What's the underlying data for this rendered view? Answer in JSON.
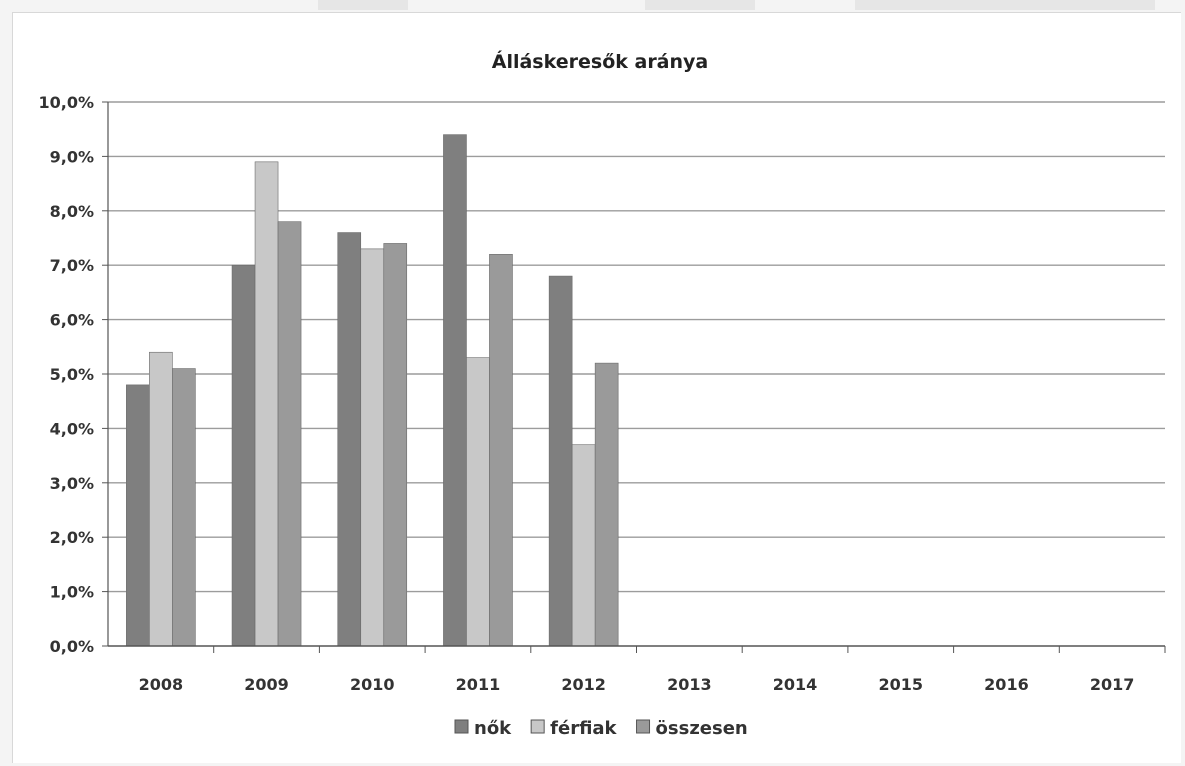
{
  "chart_data": {
    "type": "bar",
    "title": "Álláskeresők aránya",
    "categories": [
      "2008",
      "2009",
      "2010",
      "2011",
      "2012",
      "2013",
      "2014",
      "2015",
      "2016",
      "2017"
    ],
    "series": [
      {
        "name": "nők",
        "color": "#7f7f7f",
        "values": [
          4.8,
          7.0,
          7.6,
          9.4,
          6.8,
          null,
          null,
          null,
          null,
          null
        ]
      },
      {
        "name": "férfiak",
        "color": "#c8c8c8",
        "values": [
          5.4,
          8.9,
          7.3,
          5.3,
          3.7,
          null,
          null,
          null,
          null,
          null
        ]
      },
      {
        "name": "összesen",
        "color": "#9a9a9a",
        "values": [
          5.1,
          7.8,
          7.4,
          7.2,
          5.2,
          null,
          null,
          null,
          null,
          null
        ]
      }
    ],
    "ylim": [
      0,
      10
    ],
    "yticks": [
      "0,0%",
      "1,0%",
      "2,0%",
      "3,0%",
      "4,0%",
      "5,0%",
      "6,0%",
      "7,0%",
      "8,0%",
      "9,0%",
      "10,0%"
    ],
    "xlabel": "",
    "ylabel": "",
    "grid": true,
    "legend_position": "bottom"
  }
}
